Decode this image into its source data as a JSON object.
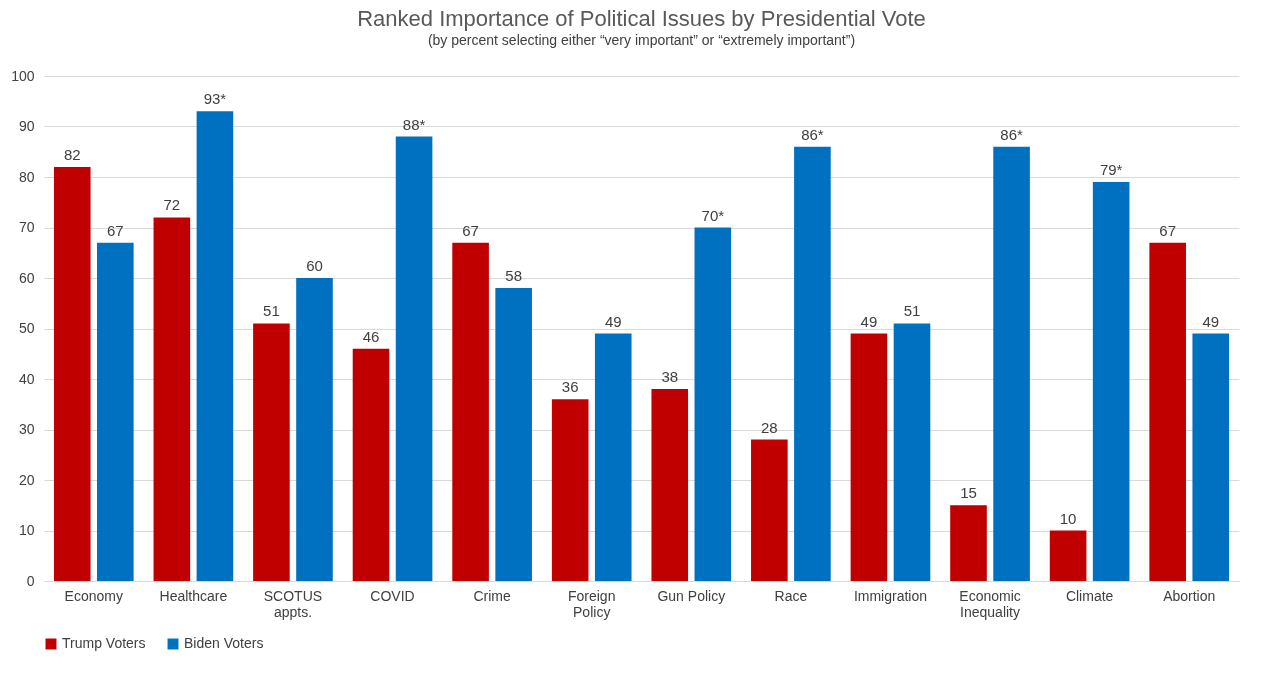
{
  "chart_data": {
    "type": "bar",
    "title": "Ranked Importance of Political Issues by Presidential Vote",
    "subtitle": "(by percent selecting either “very important” or “extremely important”)",
    "categories": [
      "Economy",
      "Healthcare",
      "SCOTUS appts.",
      "COVID",
      "Crime",
      "Foreign Policy",
      "Gun Policy",
      "Race",
      "Immigration",
      "Economic Inequality",
      "Climate",
      "Abortion"
    ],
    "series": [
      {
        "name": "Trump Voters",
        "color": "#c00000",
        "values": [
          82,
          72,
          51,
          46,
          67,
          36,
          38,
          28,
          49,
          15,
          10,
          67
        ],
        "value_labels": [
          "82",
          "72",
          "51",
          "46",
          "67",
          "36",
          "38",
          "28",
          "49",
          "15",
          "10",
          "67"
        ]
      },
      {
        "name": "Biden Voters",
        "color": "#0070c0",
        "values": [
          67,
          93,
          60,
          88,
          58,
          49,
          70,
          86,
          51,
          86,
          79,
          49
        ],
        "value_labels": [
          "67",
          "93*",
          "60",
          "88*",
          "58",
          "49",
          "70*",
          "86*",
          "51",
          "86*",
          "79*",
          "49"
        ]
      }
    ],
    "ylim": [
      0,
      100
    ],
    "yticks": [
      0,
      10,
      20,
      30,
      40,
      50,
      60,
      70,
      80,
      90,
      100
    ],
    "grid": "y",
    "legend": "bottom"
  }
}
